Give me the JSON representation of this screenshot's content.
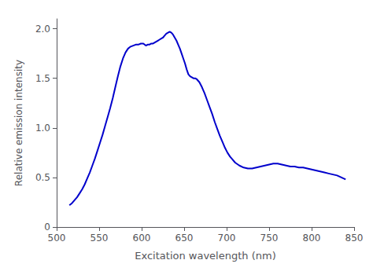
{
  "chart_data": {
    "type": "line",
    "title": "",
    "xlabel": "Excitation wavelength (nm)",
    "ylabel": "Relative emission intensity",
    "xlim": [
      500,
      850
    ],
    "ylim": [
      0,
      2.1
    ],
    "xticks": [
      500,
      550,
      600,
      650,
      700,
      750,
      800,
      850
    ],
    "yticks": [
      0,
      0.5,
      {
        "value": 1.0,
        "label": "1.0"
      },
      1.5,
      {
        "value": 2.0,
        "label": "2.0"
      }
    ],
    "color": "#0000CC",
    "grid": false,
    "x": [
      515,
      518,
      521,
      524,
      527,
      530,
      533,
      536,
      539,
      542,
      545,
      548,
      551,
      554,
      557,
      560,
      563,
      566,
      569,
      572,
      575,
      578,
      581,
      584,
      587,
      590,
      593,
      596,
      599,
      602,
      605,
      607,
      609,
      611,
      613,
      615,
      617,
      619,
      621,
      623,
      625,
      627,
      629,
      631,
      633,
      635,
      637,
      639,
      641,
      643,
      645,
      647,
      649,
      651,
      653,
      655,
      657,
      659,
      661,
      663,
      665,
      668,
      671,
      674,
      677,
      680,
      683,
      686,
      689,
      692,
      695,
      698,
      701,
      704,
      707,
      710,
      715,
      720,
      725,
      730,
      735,
      740,
      745,
      750,
      755,
      760,
      765,
      770,
      775,
      780,
      785,
      790,
      795,
      800,
      805,
      810,
      815,
      820,
      825,
      830,
      835,
      840
    ],
    "values": [
      0.22,
      0.24,
      0.27,
      0.3,
      0.34,
      0.38,
      0.43,
      0.49,
      0.55,
      0.62,
      0.69,
      0.77,
      0.85,
      0.93,
      1.02,
      1.11,
      1.2,
      1.3,
      1.41,
      1.52,
      1.62,
      1.7,
      1.76,
      1.8,
      1.82,
      1.83,
      1.84,
      1.84,
      1.85,
      1.85,
      1.83,
      1.84,
      1.84,
      1.85,
      1.85,
      1.86,
      1.87,
      1.88,
      1.89,
      1.9,
      1.91,
      1.93,
      1.95,
      1.96,
      1.97,
      1.96,
      1.94,
      1.91,
      1.88,
      1.84,
      1.8,
      1.75,
      1.7,
      1.65,
      1.59,
      1.54,
      1.52,
      1.51,
      1.5,
      1.5,
      1.49,
      1.46,
      1.41,
      1.35,
      1.28,
      1.21,
      1.14,
      1.06,
      0.99,
      0.92,
      0.86,
      0.8,
      0.75,
      0.71,
      0.68,
      0.65,
      0.62,
      0.6,
      0.59,
      0.59,
      0.6,
      0.61,
      0.62,
      0.63,
      0.64,
      0.64,
      0.63,
      0.62,
      0.61,
      0.61,
      0.6,
      0.6,
      0.59,
      0.58,
      0.57,
      0.56,
      0.55,
      0.54,
      0.53,
      0.52,
      0.5,
      0.48
    ]
  }
}
